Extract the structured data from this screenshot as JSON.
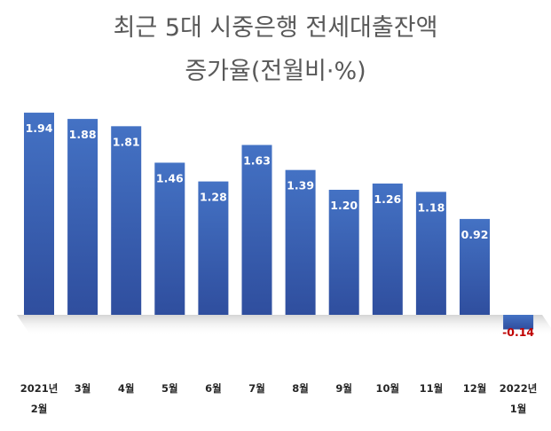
{
  "chart_data": {
    "type": "bar",
    "title": [
      "최근 5대 시중은행 전세대출잔액",
      "증가율(전월비·%)"
    ],
    "categories": [
      [
        "2021년",
        "2월"
      ],
      [
        "3월"
      ],
      [
        "4월"
      ],
      [
        "5월"
      ],
      [
        "6월"
      ],
      [
        "7월"
      ],
      [
        "8월"
      ],
      [
        "9월"
      ],
      [
        "10월"
      ],
      [
        "11월"
      ],
      [
        "12월"
      ],
      [
        "2022년",
        "1월"
      ]
    ],
    "values": [
      1.94,
      1.88,
      1.81,
      1.46,
      1.28,
      1.63,
      1.39,
      1.2,
      1.26,
      1.18,
      0.92,
      -0.14
    ],
    "data_labels": [
      "1.94",
      "1.88",
      "1.81",
      "1.46",
      "1.28",
      "1.63",
      "1.39",
      "1.20",
      "1.26",
      "1.18",
      "0.92",
      "-0.14"
    ],
    "xlabel": "",
    "ylabel": "",
    "grid": false,
    "legend": false,
    "colors": {
      "bar_top": "#4472c4",
      "bar_bottom": "#2f4e9e",
      "positive_label": "#ffffff",
      "negative_label": "#c00000",
      "category_label": "#262626",
      "title": "#595959"
    }
  }
}
